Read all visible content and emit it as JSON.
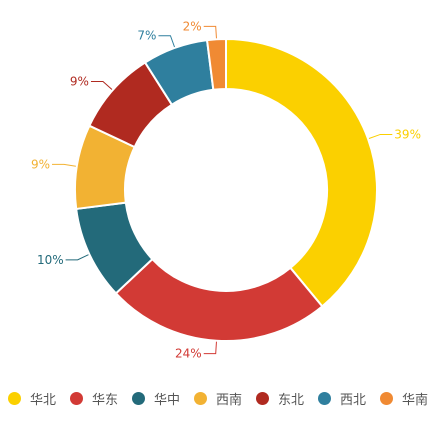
{
  "chart_data": {
    "type": "pie",
    "title": "",
    "donut": true,
    "categories": [
      "华北",
      "华东",
      "华中",
      "西南",
      "东北",
      "西北",
      "华南"
    ],
    "values": [
      39,
      24,
      10,
      9,
      9,
      7,
      2
    ],
    "value_labels": [
      "39%",
      "24%",
      "10%",
      "9%",
      "9%",
      "7%",
      "2%"
    ],
    "colors": [
      "#FBD000",
      "#D23A35",
      "#236A7A",
      "#F2B233",
      "#B02A20",
      "#2F7F9E",
      "#F08A33"
    ],
    "legend_position": "bottom",
    "start_angle_deg": 0,
    "direction": "clockwise"
  }
}
